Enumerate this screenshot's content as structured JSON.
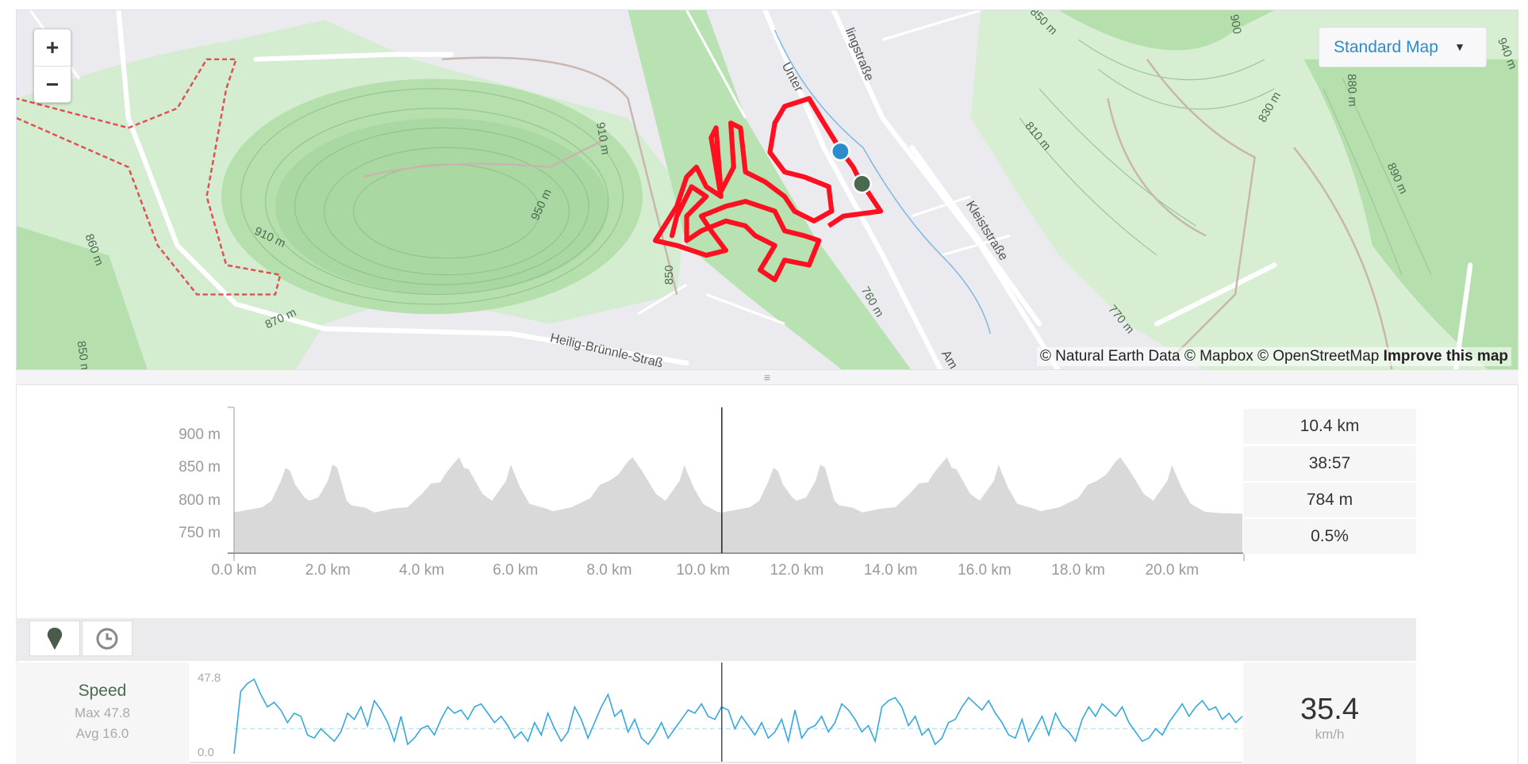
{
  "map": {
    "zoom_in_label": "+",
    "zoom_out_label": "−",
    "style_selector": {
      "selected": "Standard Map",
      "icon": "caret-down-icon"
    },
    "attribution": {
      "text": "© Natural Earth Data © Mapbox © OpenStreetMap",
      "link": "Improve this map"
    },
    "street_labels": [
      "Unter",
      "lingstraße",
      "Kleiststraße",
      "Heilig-Brünnle-Straß",
      "Am"
    ],
    "contour_labels": [
      "910 m",
      "950 m",
      "910 m",
      "870 m",
      "860 m",
      "850 m",
      "850",
      "760 m",
      "810 m",
      "830 m",
      "890 m",
      "880 m",
      "900",
      "940 m",
      "770 m",
      "850 m"
    ],
    "route_color": "#ff1020",
    "start_marker_color": "#2f8ccc",
    "end_marker_color": "#4a6a4f"
  },
  "handle_icon": "drag-handle-icon",
  "chart_data": [
    {
      "type": "area",
      "xlabel": "",
      "ylabel": "",
      "x_ticks": [
        "0.0 km",
        "2.0 km",
        "4.0 km",
        "6.0 km",
        "8.0 km",
        "10.0 km",
        "12.0 km",
        "14.0 km",
        "16.0 km",
        "18.0 km",
        "20.0 km"
      ],
      "y_ticks": [
        "750 m",
        "800 m",
        "850 m",
        "900 m"
      ],
      "xlim": [
        0,
        21.5
      ],
      "ylim": [
        720,
        942
      ],
      "cursor_km": 10.4,
      "fill_color": "#d9d9d9",
      "x": [
        0,
        0.3,
        0.6,
        0.8,
        1.0,
        1.1,
        1.2,
        1.3,
        1.5,
        1.6,
        1.8,
        2.0,
        2.1,
        2.2,
        2.4,
        2.5,
        2.8,
        3.0,
        3.4,
        3.7,
        4.0,
        4.2,
        4.4,
        4.5,
        4.7,
        4.8,
        4.9,
        5.0,
        5.3,
        5.5,
        5.8,
        5.9,
        6.1,
        6.3,
        6.6,
        6.8,
        7.2,
        7.6,
        7.8,
        8.0,
        8.2,
        8.4,
        8.5,
        8.7,
        9.0,
        9.2,
        9.5,
        9.6,
        9.8,
        10.0,
        10.3,
        10.4,
        10.7,
        11.0,
        11.2,
        11.4,
        11.5,
        11.6,
        11.7,
        11.9,
        12.0,
        12.2,
        12.4,
        12.5,
        12.6,
        12.8,
        12.9,
        13.2,
        13.4,
        13.8,
        14.1,
        14.4,
        14.6,
        14.8,
        14.9,
        15.1,
        15.2,
        15.3,
        15.4,
        15.7,
        15.9,
        16.2,
        16.3,
        16.5,
        16.7,
        17.0,
        17.2,
        17.6,
        18.0,
        18.2,
        18.4,
        18.6,
        18.8,
        18.9,
        19.1,
        19.4,
        19.6,
        19.9,
        20.0,
        20.2,
        20.4,
        20.7,
        21.0,
        21.5
      ],
      "y": [
        782,
        786,
        790,
        800,
        830,
        850,
        845,
        825,
        805,
        800,
        805,
        830,
        855,
        850,
        800,
        793,
        789,
        782,
        788,
        790,
        810,
        826,
        828,
        840,
        858,
        866,
        850,
        848,
        810,
        800,
        830,
        855,
        820,
        795,
        789,
        784,
        790,
        804,
        824,
        830,
        840,
        860,
        866,
        845,
        810,
        800,
        830,
        854,
        820,
        795,
        783,
        782,
        786,
        790,
        800,
        830,
        850,
        845,
        825,
        805,
        800,
        805,
        830,
        855,
        850,
        800,
        793,
        789,
        782,
        788,
        790,
        810,
        826,
        828,
        840,
        858,
        866,
        850,
        848,
        810,
        800,
        830,
        855,
        820,
        795,
        789,
        784,
        790,
        804,
        824,
        830,
        840,
        860,
        866,
        845,
        810,
        800,
        830,
        854,
        820,
        795,
        783,
        781,
        780
      ]
    },
    {
      "type": "line",
      "title": "Speed",
      "max_label": "Max 47.8",
      "avg_label": "Avg 16.0",
      "y_ticks": [
        "47.8",
        "0.0"
      ],
      "x_ticks": [
        "0.0 km",
        "2.0 km",
        "4.0 km",
        "6.0 km",
        "8.0 km",
        "10.0 km",
        "12.0 km",
        "14.0 km",
        "16.0 km",
        "18.0 km",
        "20.0 km"
      ],
      "xlim": [
        0,
        21.5
      ],
      "ylim": [
        0,
        47.8
      ],
      "avg": 16.0,
      "line_color": "#35a8e0",
      "values": [
        0,
        40,
        45,
        47.8,
        38,
        30,
        33,
        28,
        20,
        26,
        24,
        12,
        10,
        16,
        12,
        8,
        14,
        26,
        22,
        30,
        18,
        34,
        28,
        20,
        8,
        24,
        6,
        10,
        16,
        18,
        12,
        22,
        30,
        26,
        28,
        22,
        30,
        32,
        26,
        20,
        24,
        18,
        10,
        14,
        8,
        20,
        12,
        26,
        16,
        8,
        14,
        30,
        22,
        10,
        20,
        30,
        38,
        24,
        28,
        14,
        22,
        10,
        6,
        12,
        20,
        10,
        16,
        22,
        28,
        26,
        32,
        24,
        22,
        30,
        28,
        16,
        24,
        18,
        12,
        20,
        10,
        14,
        22,
        8,
        28,
        10,
        16,
        18,
        24,
        14,
        20,
        32,
        28,
        22,
        14,
        18,
        8,
        30,
        34,
        36,
        30,
        18,
        24,
        12,
        16,
        6,
        10,
        20,
        22,
        30,
        36,
        32,
        28,
        34,
        26,
        20,
        12,
        10,
        22,
        8,
        16,
        24,
        12,
        26,
        18,
        14,
        8,
        22,
        30,
        24,
        32,
        28,
        24,
        30,
        20,
        14,
        8,
        10,
        16,
        12,
        20,
        26,
        32,
        24,
        30,
        34,
        28,
        30,
        22,
        26,
        20,
        24
      ]
    }
  ],
  "stats": [
    "10.4 km",
    "38:57",
    "784 m",
    "0.5%"
  ],
  "toggles": [
    {
      "icon": "map-pin-icon"
    },
    {
      "icon": "clock-icon"
    }
  ],
  "current": {
    "value": "35.4",
    "unit": "km/h"
  }
}
